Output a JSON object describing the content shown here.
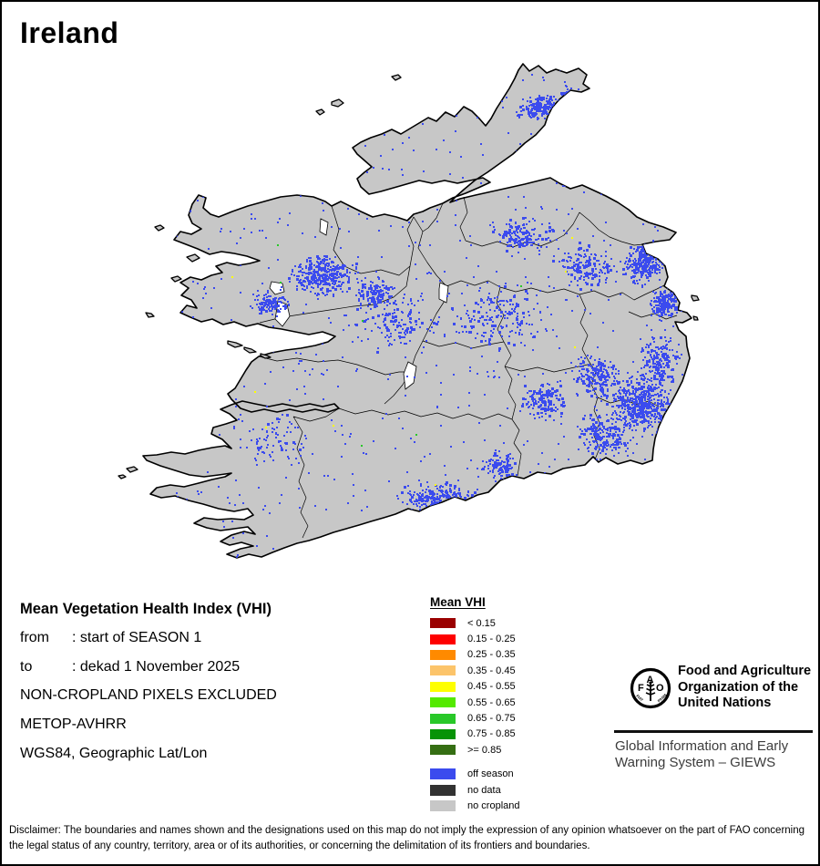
{
  "title": "Ireland",
  "map": {
    "region_name": "Ireland",
    "land_color": "#c7c7c7",
    "coast_color": "#000000",
    "county_line_color": "#000000",
    "sea_color": "#ffffff",
    "off_season_color": "#3b4bee"
  },
  "info_block": {
    "heading": "Mean Vegetation Health Index (VHI)",
    "rows": [
      {
        "label": "from",
        "value": ": start of SEASON 1"
      },
      {
        "label": "to",
        "value": ": dekad 1 November 2025"
      }
    ],
    "lines": [
      "NON-CROPLAND PIXELS EXCLUDED",
      "METOP-AVHRR",
      "WGS84, Geographic Lat/Lon"
    ]
  },
  "legend": {
    "title": "Mean VHI",
    "classes": [
      {
        "label": "< 0.15",
        "color": "#9a0000"
      },
      {
        "label": "0.15 - 0.25",
        "color": "#fe0000"
      },
      {
        "label": "0.25 - 0.35",
        "color": "#ff8a00"
      },
      {
        "label": "0.35 - 0.45",
        "color": "#fcc46a"
      },
      {
        "label": "0.45 - 0.55",
        "color": "#feff00"
      },
      {
        "label": "0.55 - 0.65",
        "color": "#54e900"
      },
      {
        "label": "0.65 - 0.75",
        "color": "#29c829"
      },
      {
        "label": "0.75 - 0.85",
        "color": "#079307"
      },
      {
        "label": ">= 0.85",
        "color": "#356e13"
      }
    ],
    "extra_classes": [
      {
        "label": "off season",
        "color": "#3b4bee"
      },
      {
        "label": "no data",
        "color": "#323232"
      },
      {
        "label": "no cropland",
        "color": "#c7c7c7"
      }
    ]
  },
  "footer_org": {
    "fao_letters": [
      "F",
      "A",
      "O"
    ],
    "fao_motto_left": "FIAT",
    "fao_motto_right": "PANIS",
    "org_name_lines": [
      "Food and Agriculture",
      "Organization of the",
      "United Nations"
    ],
    "giews_lines": [
      "Global Information and Early",
      "Warning System – GIEWS"
    ]
  },
  "disclaimer": "Disclaimer: The boundaries and names shown and the designations used on this map do not imply the expression of any opinion whatsoever on the part of FAO concerning the legal status of any country, territory, area or of its authorities, or concerning the delimitation of its frontiers and boundaries."
}
